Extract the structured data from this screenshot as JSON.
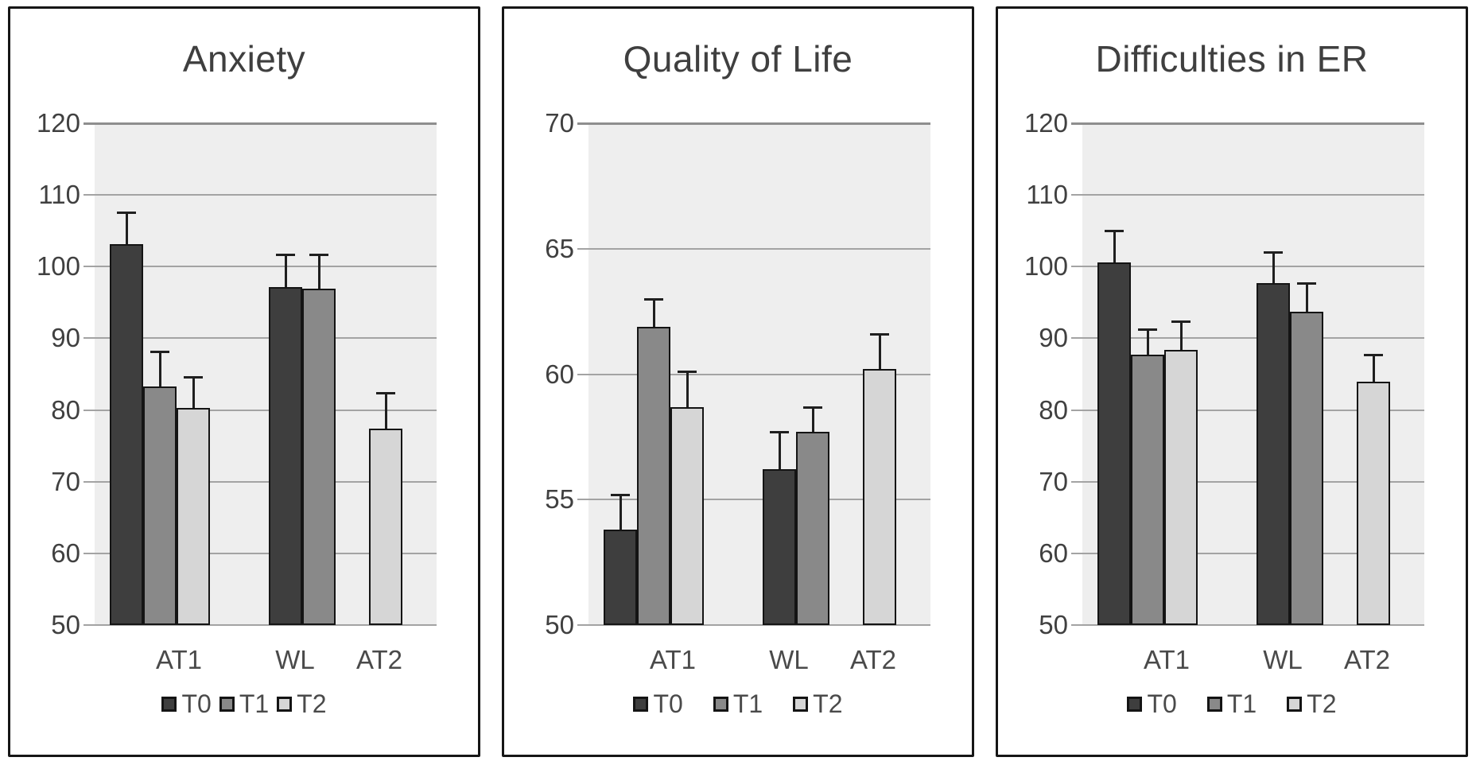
{
  "figure_name": "outcome-bar-charts",
  "colors": {
    "plot_background": "#eeeeee",
    "gridline": "#a3a3a3",
    "gridline_top": "#8e8e8e",
    "bar_border": "#141414",
    "error_bar": "#1f1f1f",
    "panel_border": "#161616",
    "title_text": "#3f3f3f",
    "axis_text": "#404040"
  },
  "chart_data": [
    {
      "type": "bar",
      "title": "Anxiety",
      "categories": [
        "AT1",
        "WL",
        "AT2"
      ],
      "series": [
        {
          "name": "T0",
          "color": "#3e3e3e",
          "values": [
            103.1,
            97.1,
            null
          ],
          "errors": [
            4.5,
            4.6,
            null
          ]
        },
        {
          "name": "T1",
          "color": "#898989",
          "values": [
            83.3,
            96.9,
            null
          ],
          "errors": [
            4.9,
            4.8,
            null
          ]
        },
        {
          "name": "T2",
          "color": "#d6d6d6",
          "values": [
            80.3,
            null,
            77.4
          ],
          "errors": [
            4.3,
            null,
            5.0
          ]
        }
      ],
      "xlabel": "",
      "ylabel": "",
      "ylim": [
        50,
        120
      ],
      "yticks": [
        50,
        60,
        70,
        80,
        90,
        100,
        110,
        120
      ],
      "grid": true,
      "error_bars": "upper",
      "legend": [
        "T0",
        "T1",
        "T2"
      ],
      "legend_position": "bottom"
    },
    {
      "type": "bar",
      "title": "Quality of Life",
      "categories": [
        "AT1",
        "WL",
        "AT2"
      ],
      "series": [
        {
          "name": "T0",
          "color": "#3e3e3e",
          "values": [
            53.8,
            56.2,
            null
          ],
          "errors": [
            1.4,
            1.5,
            null
          ]
        },
        {
          "name": "T1",
          "color": "#898989",
          "values": [
            61.9,
            57.7,
            null
          ],
          "errors": [
            1.1,
            1.0,
            null
          ]
        },
        {
          "name": "T2",
          "color": "#d6d6d6",
          "values": [
            58.7,
            null,
            60.2
          ],
          "errors": [
            1.4,
            null,
            1.4
          ]
        }
      ],
      "xlabel": "",
      "ylabel": "",
      "ylim": [
        50,
        70
      ],
      "yticks": [
        50,
        55,
        60,
        65,
        70
      ],
      "grid": true,
      "error_bars": "upper",
      "legend": [
        "T0",
        "T1",
        "T2"
      ],
      "legend_position": "bottom"
    },
    {
      "type": "bar",
      "title": "Difficulties in ER",
      "categories": [
        "AT1",
        "WL",
        "AT2"
      ],
      "series": [
        {
          "name": "T0",
          "color": "#3e3e3e",
          "values": [
            100.6,
            97.7,
            null
          ],
          "errors": [
            4.4,
            4.3,
            null
          ]
        },
        {
          "name": "T1",
          "color": "#898989",
          "values": [
            87.7,
            93.7,
            null
          ],
          "errors": [
            3.6,
            4.0,
            null
          ]
        },
        {
          "name": "T2",
          "color": "#d6d6d6",
          "values": [
            88.4,
            null,
            84.0
          ],
          "errors": [
            4.0,
            null,
            3.7
          ]
        }
      ],
      "xlabel": "",
      "ylabel": "",
      "ylim": [
        50,
        120
      ],
      "yticks": [
        50,
        60,
        70,
        80,
        90,
        100,
        110,
        120
      ],
      "grid": true,
      "error_bars": "upper",
      "legend": [
        "T0",
        "T1",
        "T2"
      ],
      "legend_position": "bottom"
    }
  ]
}
